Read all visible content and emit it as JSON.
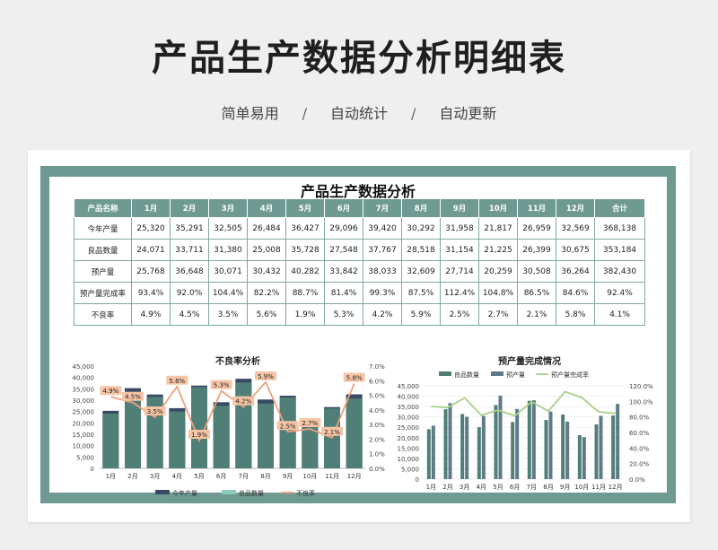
{
  "page": {
    "title": "产品生产数据分析明细表",
    "subtitle": [
      "简单易用",
      "自动统计",
      "自动更新"
    ],
    "separator": "/"
  },
  "sheet": {
    "title": "产品生产数据分析",
    "header": [
      "产品名称",
      "1月",
      "2月",
      "3月",
      "4月",
      "5月",
      "6月",
      "7月",
      "8月",
      "9月",
      "10月",
      "11月",
      "12月",
      "合计"
    ],
    "rows": [
      [
        "今年产量",
        "25,320",
        "35,291",
        "32,505",
        "26,484",
        "36,427",
        "29,096",
        "39,420",
        "30,292",
        "31,958",
        "21,817",
        "26,959",
        "32,569",
        "368,138"
      ],
      [
        "良品数量",
        "24,071",
        "33,711",
        "31,380",
        "25,008",
        "35,728",
        "27,548",
        "37,767",
        "28,518",
        "31,154",
        "21,225",
        "26,399",
        "30,675",
        "353,184"
      ],
      [
        "预产量",
        "25,768",
        "36,648",
        "30,071",
        "30,432",
        "40,282",
        "33,842",
        "38,033",
        "32,609",
        "27,714",
        "20,259",
        "30,508",
        "36,264",
        "382,430"
      ],
      [
        "预产量完成率",
        "93.4%",
        "92.0%",
        "104.4%",
        "82.2%",
        "88.7%",
        "81.4%",
        "99.3%",
        "87.5%",
        "112.4%",
        "104.8%",
        "86.5%",
        "84.6%",
        "92.4%"
      ],
      [
        "不良率",
        "4.9%",
        "4.5%",
        "3.5%",
        "5.6%",
        "1.9%",
        "5.3%",
        "4.2%",
        "5.9%",
        "2.5%",
        "2.7%",
        "2.1%",
        "5.8%",
        "4.1%"
      ]
    ]
  },
  "colors": {
    "teal": "#6e9a92",
    "bar_dark": "#3a4a66",
    "bar_teal": "#4f7f76",
    "bar_light": "#8fc9b8",
    "line_orange": "#f0a07a",
    "line_green": "#a8d088"
  },
  "chart_data": [
    {
      "type": "bar",
      "title": "不良率分析",
      "categories": [
        "1月",
        "2月",
        "3月",
        "4月",
        "5月",
        "6月",
        "7月",
        "8月",
        "9月",
        "10月",
        "11月",
        "12月"
      ],
      "series": [
        {
          "name": "今年产量",
          "values": [
            25320,
            35291,
            32505,
            26484,
            36427,
            29096,
            39420,
            30292,
            31958,
            21817,
            26959,
            32569
          ]
        },
        {
          "name": "良品数量",
          "values": [
            24071,
            33711,
            31380,
            25008,
            35728,
            27548,
            37767,
            28518,
            31154,
            21225,
            26399,
            30675
          ]
        },
        {
          "name": "不良率",
          "axis": "right",
          "type": "line",
          "values": [
            4.9,
            4.5,
            3.5,
            5.6,
            1.9,
            5.3,
            4.2,
            5.9,
            2.5,
            2.7,
            2.1,
            5.8
          ],
          "labels": [
            "4.9%",
            "4.5%",
            "3.5%",
            "5.6%",
            "1.9%",
            "5.3%",
            "4.2%",
            "5.9%",
            "2.5%",
            "2.7%",
            "2.1%",
            "5.8%"
          ]
        }
      ],
      "ylim": [
        0,
        45000
      ],
      "y_ticks": [
        "0",
        "5,000",
        "10,000",
        "15,000",
        "20,000",
        "25,000",
        "30,000",
        "35,000",
        "40,000",
        "45,000"
      ],
      "y2lim": [
        0,
        7
      ],
      "y2_ticks": [
        "0.0%",
        "1.0%",
        "2.0%",
        "3.0%",
        "4.0%",
        "5.0%",
        "6.0%",
        "7.0%"
      ],
      "legend": "bottom"
    },
    {
      "type": "bar",
      "title": "预产量完成情况",
      "categories": [
        "1月",
        "2月",
        "3月",
        "4月",
        "5月",
        "6月",
        "7月",
        "8月",
        "9月",
        "10月",
        "11月",
        "12月"
      ],
      "series": [
        {
          "name": "良品数量",
          "values": [
            24071,
            33711,
            31380,
            25008,
            35728,
            27548,
            37767,
            28518,
            31154,
            21225,
            26399,
            30675
          ]
        },
        {
          "name": "预产量",
          "values": [
            25768,
            36648,
            30071,
            30432,
            40282,
            33842,
            38033,
            32609,
            27714,
            20259,
            30508,
            36264
          ]
        },
        {
          "name": "预产量完成率",
          "axis": "right",
          "type": "line",
          "values": [
            93.4,
            92.0,
            104.4,
            82.2,
            88.7,
            81.4,
            99.3,
            87.5,
            112.4,
            104.8,
            86.5,
            84.6
          ]
        }
      ],
      "ylim": [
        0,
        45000
      ],
      "y_ticks": [
        "0",
        "5,000",
        "10,000",
        "15,000",
        "20,000",
        "25,000",
        "30,000",
        "35,000",
        "40,000",
        "45,000"
      ],
      "y2lim": [
        0,
        120
      ],
      "y2_ticks": [
        "0.0%",
        "20.0%",
        "40.0%",
        "60.0%",
        "80.0%",
        "100.0%",
        "120.0%"
      ],
      "legend": "top"
    }
  ]
}
